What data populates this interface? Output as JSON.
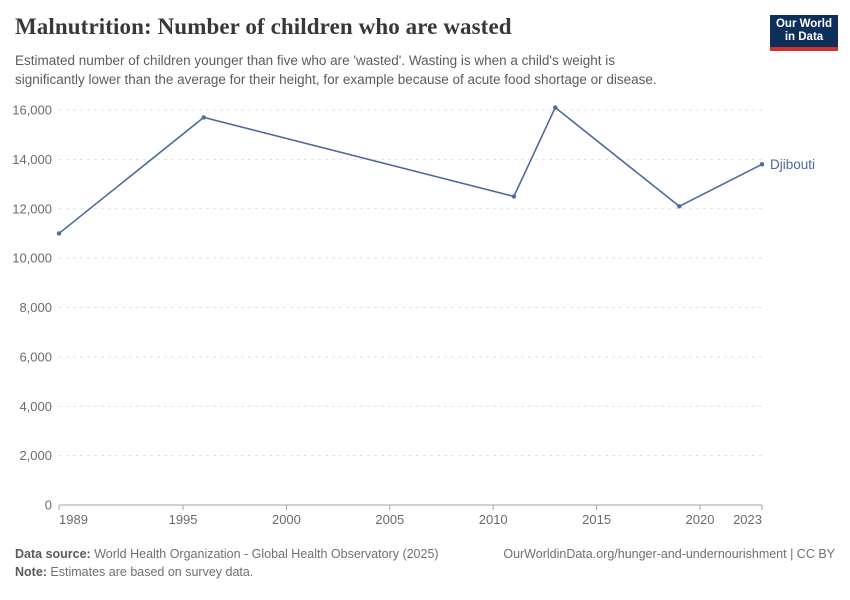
{
  "header": {
    "title": "Malnutrition: Number of children who are wasted",
    "subtitle": "Estimated number of children younger than five who are 'wasted'. Wasting is when a child's weight is significantly lower than the average for their height, for example because of acute food shortage or disease.",
    "logo": {
      "line1": "Our World",
      "line2": "in Data",
      "bg_color": "#0e2f5a",
      "accent_color": "#d1322a"
    }
  },
  "chart_data": {
    "type": "line",
    "title": "Malnutrition: Number of children who are wasted",
    "xlabel": "",
    "ylabel": "",
    "xlim": [
      1989,
      2023
    ],
    "ylim": [
      0,
      16000
    ],
    "x_ticks": [
      1989,
      1995,
      2000,
      2005,
      2010,
      2015,
      2020,
      2023
    ],
    "y_ticks": [
      0,
      2000,
      4000,
      6000,
      8000,
      10000,
      12000,
      14000,
      16000
    ],
    "grid": "horizontal-dashed",
    "legend_position": "end-of-line-label",
    "series": [
      {
        "name": "Djibouti",
        "color": "#4c6a9c",
        "x": [
          1989,
          1996,
          2011,
          2013,
          2019,
          2023
        ],
        "values": [
          11000,
          15700,
          12500,
          16100,
          12100,
          13800
        ]
      }
    ],
    "colors": {
      "gridline": "#e2e2e2",
      "axis_line": "#a5a5a5",
      "tick_label": "#6b6b6b"
    }
  },
  "footer": {
    "datasource_label": "Data source:",
    "datasource_text": " World Health Organization - Global Health Observatory (2025)",
    "note_label": "Note:",
    "note_text": " Estimates are based on survey data.",
    "link": "OurWorldinData.org/hunger-and-undernourishment | CC BY"
  }
}
